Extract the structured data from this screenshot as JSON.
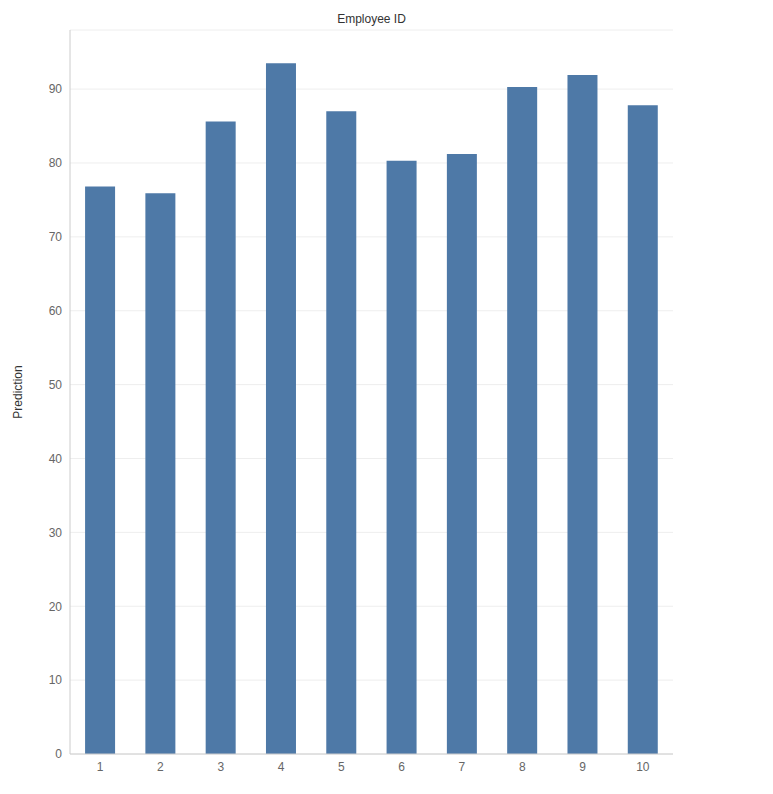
{
  "chart_data": {
    "type": "bar",
    "x_label": "Employee ID",
    "y_label": "Prediction",
    "categories": [
      "1",
      "2",
      "3",
      "4",
      "5",
      "6",
      "7",
      "8",
      "9",
      "10"
    ],
    "values": [
      76.8,
      75.9,
      85.6,
      93.5,
      87.0,
      80.3,
      81.2,
      90.3,
      91.9,
      87.8
    ],
    "color": "#4e79a7",
    "ylim": [
      0,
      98
    ],
    "yticks": [
      0,
      10,
      20,
      30,
      40,
      50,
      60,
      70,
      80,
      90
    ],
    "grid": true
  }
}
